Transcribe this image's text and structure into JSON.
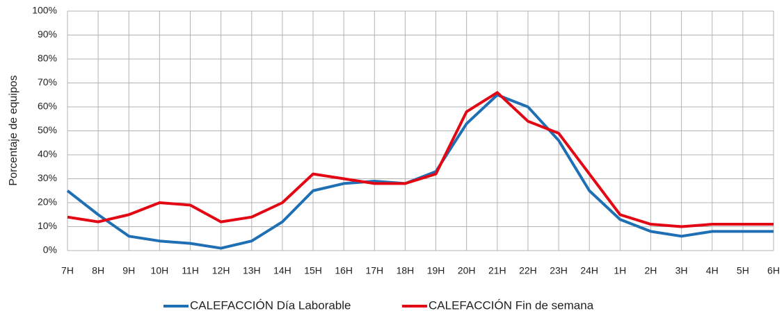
{
  "chart_data": {
    "type": "line",
    "y_label": "Porcentaje de equipos",
    "categories": [
      "7H",
      "8H",
      "9H",
      "10H",
      "11H",
      "12H",
      "13H",
      "14H",
      "15H",
      "16H",
      "17H",
      "18H",
      "19H",
      "20H",
      "21H",
      "22H",
      "23H",
      "24H",
      "1H",
      "2H",
      "3H",
      "4H",
      "5H",
      "6H"
    ],
    "series": [
      {
        "name": "CALEFACCIÓN Día Laborable",
        "color": "#1f6fb5",
        "values": [
          25,
          15,
          6,
          4,
          3,
          1,
          4,
          12,
          25,
          28,
          29,
          28,
          33,
          53,
          65,
          60,
          46,
          25,
          13,
          8,
          6,
          8,
          8,
          8
        ]
      },
      {
        "name": "CALEFACCIÓN Fin de semana",
        "color": "#e30613",
        "values": [
          14,
          12,
          15,
          20,
          19,
          12,
          14,
          20,
          32,
          30,
          28,
          28,
          32,
          58,
          66,
          54,
          49,
          32,
          15,
          11,
          10,
          11,
          11,
          11
        ]
      }
    ],
    "ylim": [
      0,
      100
    ],
    "yticks": [
      {
        "value": 0,
        "label": "0%"
      },
      {
        "value": 10,
        "label": "10%"
      },
      {
        "value": 20,
        "label": "20%"
      },
      {
        "value": 30,
        "label": "30%"
      },
      {
        "value": 40,
        "label": "40%"
      },
      {
        "value": 50,
        "label": "50%"
      },
      {
        "value": 60,
        "label": "60%"
      },
      {
        "value": 70,
        "label": "70%"
      },
      {
        "value": 80,
        "label": "80%"
      },
      {
        "value": 90,
        "label": "90%"
      },
      {
        "value": 100,
        "label": "100%"
      }
    ],
    "grid": true,
    "legend": "bottom"
  }
}
